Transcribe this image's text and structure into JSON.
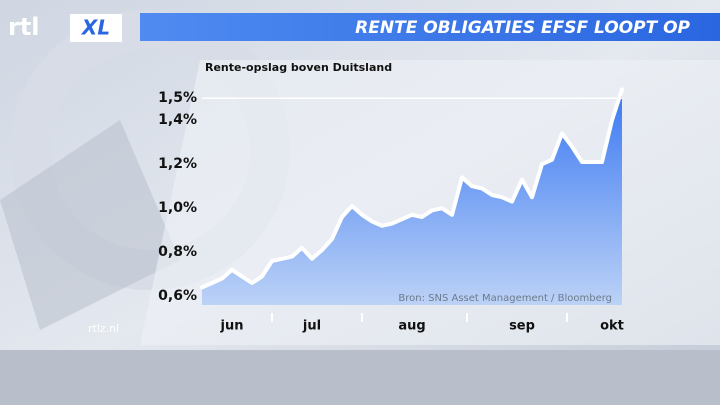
{
  "chart_data": {
    "type": "area_line",
    "title": "RENTE OBLIGATIES EFSF LOOPT OP",
    "subtitle": "Rente-opslag boven Duitsland",
    "source": "Bron: SNS Asset Management / Bloomberg",
    "logo": {
      "brand": "rtl",
      "suffix": "XL"
    },
    "website": "rtlz.nl",
    "categories": [
      null,
      null,
      null,
      "jun",
      null,
      null,
      null,
      null,
      null,
      null,
      null,
      "jul",
      null,
      null,
      null,
      null,
      null,
      null,
      null,
      null,
      null,
      "aug",
      null,
      null,
      null,
      null,
      null,
      null,
      null,
      null,
      null,
      null,
      "sep",
      null,
      null,
      null,
      null,
      null,
      null,
      null,
      null,
      "okt",
      null
    ],
    "values": [
      0.64,
      0.66,
      0.68,
      0.72,
      0.69,
      0.66,
      0.69,
      0.76,
      0.77,
      0.78,
      0.82,
      0.77,
      0.81,
      0.86,
      0.96,
      1.01,
      0.97,
      0.94,
      0.92,
      0.93,
      0.95,
      0.97,
      0.96,
      0.99,
      1.0,
      0.97,
      1.14,
      1.1,
      1.09,
      1.06,
      1.05,
      1.03,
      1.13,
      1.05,
      1.2,
      1.22,
      1.34,
      1.28,
      1.21,
      1.21,
      1.21,
      1.4,
      1.54
    ],
    "color": "#ffffff",
    "fill_color": "#3d7bf0",
    "ylim": [
      0.56,
      1.56
    ],
    "yticks": [
      {
        "value": 0.6,
        "label": "0,6%"
      },
      {
        "value": 0.8,
        "label": "0,8%"
      },
      {
        "value": 1.0,
        "label": "1,0%"
      },
      {
        "value": 1.2,
        "label": "1,2%"
      },
      {
        "value": 1.4,
        "label": "1,4%"
      },
      {
        "value": 1.5,
        "label": "1,5%"
      }
    ]
  }
}
